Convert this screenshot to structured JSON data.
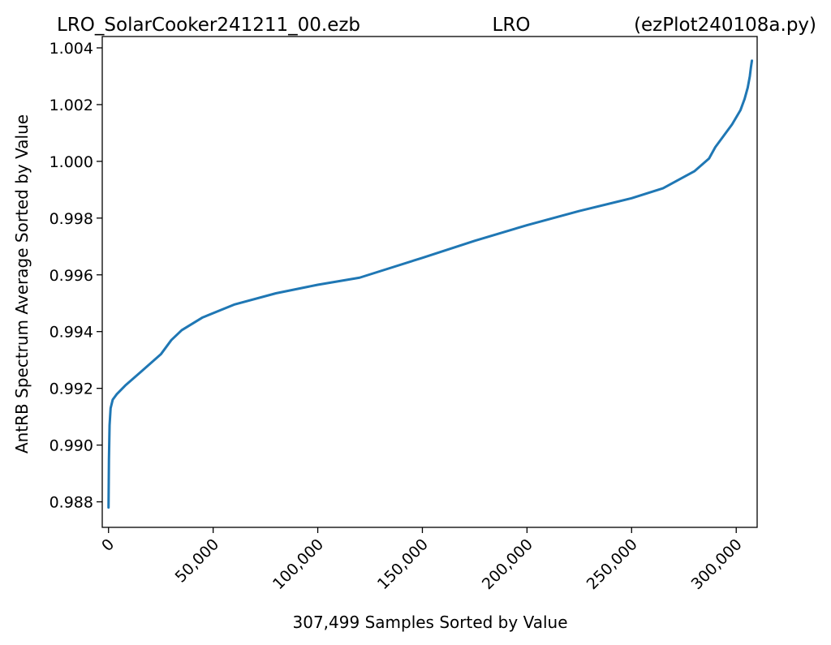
{
  "chart_data": {
    "type": "line",
    "title_left": "LRO_SolarCooker241211_00.ezb",
    "title_center": "LRO",
    "title_right": "(ezPlot240108a.py)",
    "xlabel": "307,499 Samples Sorted by Value",
    "ylabel": "AntRB Spectrum Average Sorted by Value",
    "xlim": [
      -3000,
      310000
    ],
    "ylim": [
      0.9871,
      1.0044
    ],
    "x_ticks": [
      0,
      50000,
      100000,
      150000,
      200000,
      250000,
      300000
    ],
    "x_tick_labels": [
      "0",
      "50,000",
      "100,000",
      "150,000",
      "200,000",
      "250,000",
      "300,000"
    ],
    "y_ticks": [
      0.988,
      0.99,
      0.992,
      0.994,
      0.996,
      0.998,
      1.0,
      1.002,
      1.004
    ],
    "y_tick_labels": [
      "0.988",
      "0.990",
      "0.992",
      "0.994",
      "0.996",
      "0.998",
      "1.000",
      "1.002",
      "1.004"
    ],
    "grid": false,
    "line_color": "#1f77b4",
    "series": [
      {
        "x": [
          0,
          200,
          500,
          1000,
          2000,
          4000,
          8000,
          15000,
          25000,
          30000,
          35000,
          45000,
          60000,
          80000,
          100000,
          120000,
          150000,
          175000,
          200000,
          225000,
          250000,
          265000,
          280000,
          287000,
          290000,
          294000,
          298000,
          302000,
          304000,
          305500,
          306500,
          307000,
          307499
        ],
        "y": [
          0.9878,
          0.9895,
          0.9907,
          0.9913,
          0.9916,
          0.9918,
          0.9921,
          0.99255,
          0.9932,
          0.9937,
          0.99405,
          0.9945,
          0.99495,
          0.99535,
          0.99565,
          0.9959,
          0.9966,
          0.9972,
          0.99775,
          0.99825,
          0.9987,
          0.99905,
          0.99965,
          1.0001,
          1.0005,
          1.0009,
          1.0013,
          1.0018,
          1.0022,
          1.0026,
          1.003,
          1.0033,
          1.00355
        ]
      }
    ]
  }
}
